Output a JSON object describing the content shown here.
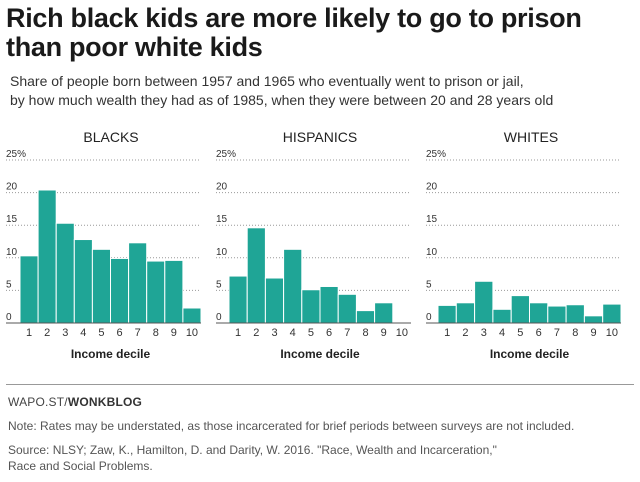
{
  "title": "Rich black kids are more likely to go to prison than poor white kids",
  "subtitle_line1": "Share of people born between 1957 and 1965 who eventually went to prison or jail,",
  "subtitle_line2": "by how much wealth they had as of 1985, when they were between 20 and 28 years old",
  "credit_prefix": "WAPO.ST/",
  "credit_bold": "WONKBLOG",
  "note": "Note: Rates may be understated, as those incarcerated for brief periods between surveys are not included.",
  "source_line1": "Source: NLSY; Zaw, K., Hamilton, D. and Darity, W. 2016. \"Race, Wealth and Incarceration,\"",
  "source_line2": "Race and Social Problems.",
  "colors": {
    "bar": "#1fa596",
    "bar_stroke": "#ffffff",
    "grid": "#999999",
    "text": "#333333"
  },
  "chart_data": [
    {
      "type": "bar",
      "title": "BLACKS",
      "xlabel": "Income decile",
      "categories": [
        "1",
        "2",
        "3",
        "4",
        "5",
        "6",
        "7",
        "8",
        "9",
        "10"
      ],
      "values": [
        10.3,
        20.4,
        15.3,
        12.8,
        11.3,
        9.9,
        12.3,
        9.5,
        9.6,
        2.3
      ],
      "ylim": [
        0,
        25
      ],
      "yticks": [
        "0",
        "5",
        "10",
        "15",
        "20",
        "25%"
      ],
      "grid": true
    },
    {
      "type": "bar",
      "title": "HISPANICS",
      "xlabel": "Income decile",
      "categories": [
        "1",
        "2",
        "3",
        "4",
        "5",
        "6",
        "7",
        "8",
        "9",
        "10"
      ],
      "values": [
        7.2,
        14.6,
        6.9,
        11.3,
        5.1,
        5.6,
        4.4,
        1.9,
        3.1,
        0
      ],
      "ylim": [
        0,
        25
      ],
      "yticks": [
        "0",
        "5",
        "10",
        "15",
        "20",
        "25%"
      ],
      "grid": true
    },
    {
      "type": "bar",
      "title": "WHITES",
      "xlabel": "Income decile",
      "categories": [
        "1",
        "2",
        "3",
        "4",
        "5",
        "6",
        "7",
        "8",
        "9",
        "10"
      ],
      "values": [
        2.7,
        3.1,
        6.4,
        2.1,
        4.2,
        3.1,
        2.6,
        2.8,
        1.1,
        2.9
      ],
      "ylim": [
        0,
        25
      ],
      "yticks": [
        "0",
        "5",
        "10",
        "15",
        "20",
        "25%"
      ],
      "grid": true
    }
  ]
}
